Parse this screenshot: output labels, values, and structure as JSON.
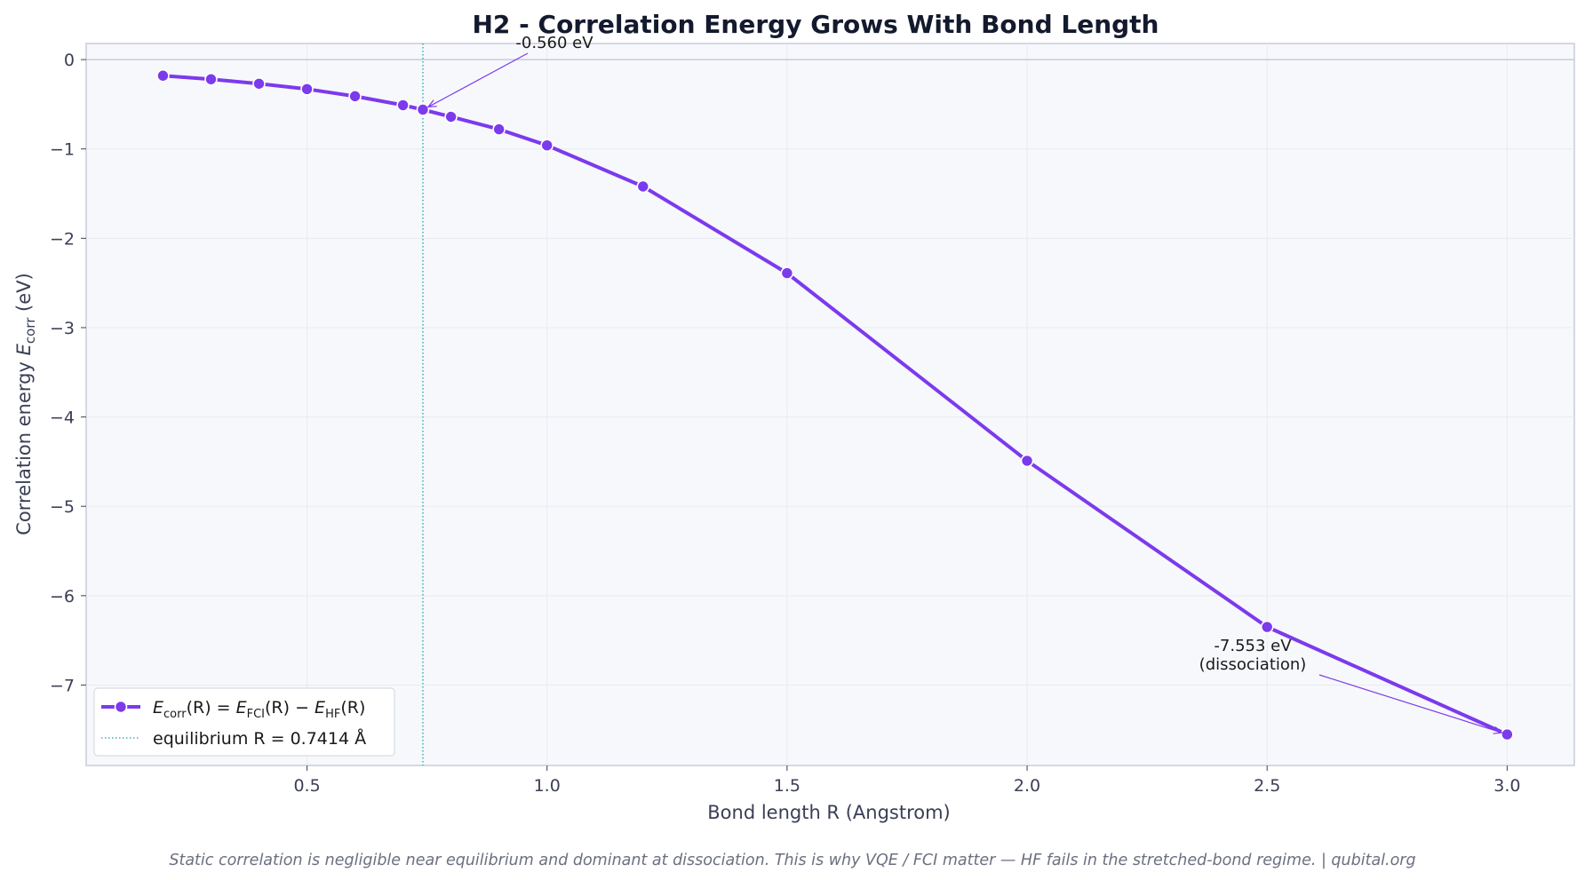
{
  "chart_data": {
    "type": "line",
    "title": "H2 - Correlation Energy Grows With Bond Length",
    "xlabel": "Bond length R (Angstrom)",
    "ylabel_prefix": "Correlation energy ",
    "ylabel_var": "E",
    "ylabel_sub": "corr",
    "ylabel_suffix": " (eV)",
    "xlim": [
      0.04,
      3.14
    ],
    "ylim": [
      -7.9,
      0.18
    ],
    "x_ticks": [
      0.5,
      1.0,
      1.5,
      2.0,
      2.5,
      3.0
    ],
    "x_tick_labels": [
      "0.5",
      "1.0",
      "1.5",
      "2.0",
      "2.5",
      "3.0"
    ],
    "y_ticks": [
      0,
      -1,
      -2,
      -3,
      -4,
      -5,
      -6,
      -7
    ],
    "y_tick_labels": [
      "0",
      "−1",
      "−2",
      "−3",
      "−4",
      "−5",
      "−6",
      "−7"
    ],
    "grid": true,
    "legend_position": "bottom-left",
    "series": [
      {
        "name": "E_corr(R) = E_FCI(R) − E_HF(R)",
        "color": "#7c3aed",
        "x": [
          0.2,
          0.3,
          0.4,
          0.5,
          0.6,
          0.7,
          0.7414,
          0.8,
          0.9,
          1.0,
          1.2,
          1.5,
          2.0,
          2.5,
          3.0
        ],
        "values": [
          -0.18,
          -0.22,
          -0.27,
          -0.33,
          -0.41,
          -0.51,
          -0.56,
          -0.64,
          -0.78,
          -0.96,
          -1.42,
          -2.39,
          -4.49,
          -6.35,
          -7.553
        ]
      }
    ],
    "equilibrium": {
      "x": 0.7414,
      "label": "equilibrium R = 0.7414 Å",
      "color": "#17a2b8"
    },
    "annotations": [
      {
        "lines": [
          "-0.560 eV"
        ],
        "x": 0.7414,
        "y": -0.56
      },
      {
        "lines": [
          "-7.553 eV",
          "(dissociation)"
        ],
        "x": 3.0,
        "y": -7.553
      }
    ],
    "legend": {
      "series_label_parts": [
        "E",
        "corr",
        "(R) = ",
        "E",
        "FCI",
        "(R) − ",
        "E",
        "HF",
        "(R)"
      ]
    },
    "footer": "Static correlation is negligible near equilibrium and dominant at dissociation.  This is why VQE / FCI matter — HF fails in the stretched-bond regime.  |  qubital.org",
    "colors": {
      "plot_background": "#f7f8fb",
      "axes_frame": "#c9ccdc",
      "grid": "#e9ebf1",
      "accent": "#7c3aed",
      "equilibrium_line": "#17a2b8"
    }
  }
}
